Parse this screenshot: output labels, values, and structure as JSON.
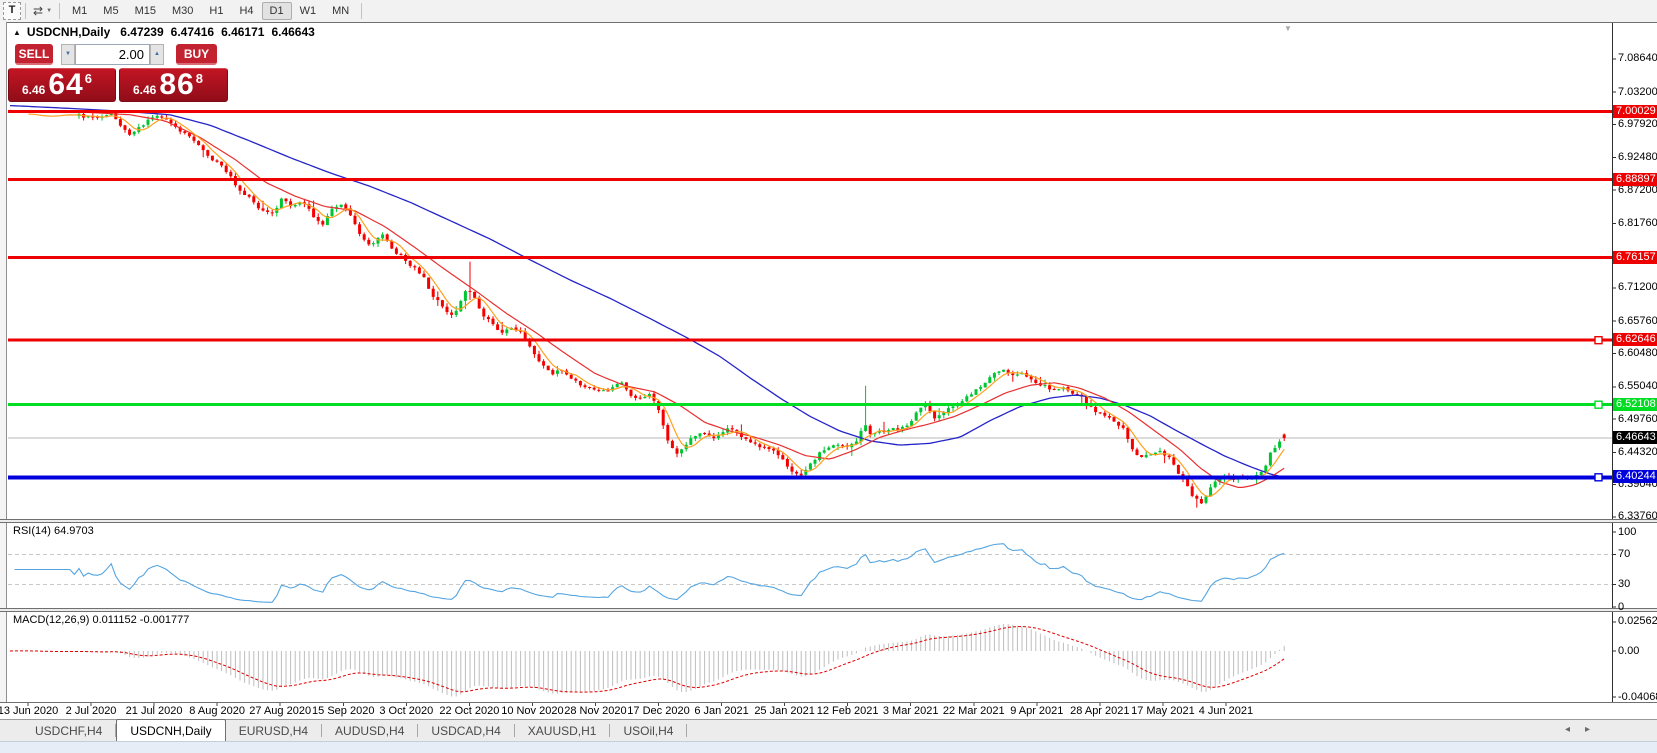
{
  "toolbar": {
    "icons": {
      "text_tool": "T",
      "crosshair_tool": "⇄",
      "dropdown": "▼",
      "title_marker": "▲",
      "shift_marker": "▼",
      "spinner_up": "▲",
      "spinner_down": "▼",
      "nav_left": "◂",
      "nav_right": "▸"
    },
    "timeframes": [
      "M1",
      "M5",
      "M15",
      "M30",
      "H1",
      "H4",
      "D1",
      "W1",
      "MN"
    ],
    "active_timeframe": "D1"
  },
  "chart_window": {
    "title": {
      "symbol": "USDCNH,Daily",
      "open": "6.47239",
      "high": "6.47416",
      "low": "6.46171",
      "close": "6.46643"
    },
    "trade_panel": {
      "sell_label": "SELL",
      "buy_label": "BUY",
      "volume": "2.00",
      "sell_price": {
        "prefix": "6.46",
        "big": "64",
        "sup": "6"
      },
      "buy_price": {
        "prefix": "6.46",
        "big": "86",
        "sup": "8"
      }
    }
  },
  "chart_data": {
    "type": "candlestick",
    "symbol": "USDCNH",
    "timeframe": "Daily",
    "ohlc": {
      "open": 6.47239,
      "high": 6.47416,
      "low": 6.46171,
      "close": 6.46643
    },
    "ylim": [
      6.3343,
      7.109
    ],
    "price_axis_ticks": [
      "7.08640",
      "7.03200",
      "6.97920",
      "6.92480",
      "6.87200",
      "6.81760",
      "6.71200",
      "6.65760",
      "6.60480",
      "6.55040",
      "6.49760",
      "6.44320",
      "6.39040",
      "6.33760"
    ],
    "hlines": [
      {
        "price": 7.00029,
        "label": "7.00029",
        "color": "#ee0000",
        "text_color": "#ffffff",
        "width": 3,
        "handle": false
      },
      {
        "price": 6.88897,
        "label": "6.88897",
        "color": "#ee0000",
        "text_color": "#ffffff",
        "width": 3,
        "handle": false
      },
      {
        "price": 6.76157,
        "label": "6.76157",
        "color": "#ee0000",
        "text_color": "#ffffff",
        "width": 3,
        "handle": false
      },
      {
        "price": 6.62646,
        "label": "6.62646",
        "color": "#ee0000",
        "text_color": "#ffffff",
        "width": 3,
        "handle": true
      },
      {
        "price": 6.52108,
        "label": "6.52108",
        "color": "#00dd22",
        "text_color": "#ffffff",
        "width": 3,
        "handle": true
      },
      {
        "price": 6.40244,
        "label": "6.40244",
        "color": "#0000dd",
        "text_color": "#ffffff",
        "width": 4,
        "handle": true
      }
    ],
    "current_price": {
      "value": 6.46643,
      "label": "6.46643",
      "line_color": "#b9b9b9",
      "badge_bg": "#000000",
      "badge_text": "#ffffff"
    },
    "candle_colors": {
      "up": "#00c432",
      "down": "#f40000"
    },
    "ma_colors": {
      "fast": "#ffa01e",
      "medium": "#e83030",
      "slow": "#2424c8"
    },
    "price_path": [
      [
        10,
        6.998
      ],
      [
        40,
        6.992
      ],
      [
        60,
        6.996
      ],
      [
        75,
        6.995
      ],
      [
        95,
        6.99
      ],
      [
        112,
        6.998
      ],
      [
        128,
        6.962
      ],
      [
        140,
        6.975
      ],
      [
        152,
        6.992
      ],
      [
        168,
        6.988
      ],
      [
        180,
        6.968
      ],
      [
        195,
        6.952
      ],
      [
        210,
        6.925
      ],
      [
        225,
        6.905
      ],
      [
        240,
        6.872
      ],
      [
        252,
        6.855
      ],
      [
        262,
        6.838
      ],
      [
        272,
        6.832
      ],
      [
        282,
        6.858
      ],
      [
        292,
        6.842
      ],
      [
        302,
        6.855
      ],
      [
        312,
        6.832
      ],
      [
        322,
        6.815
      ],
      [
        332,
        6.842
      ],
      [
        342,
        6.848
      ],
      [
        352,
        6.825
      ],
      [
        362,
        6.79
      ],
      [
        372,
        6.782
      ],
      [
        382,
        6.8
      ],
      [
        392,
        6.775
      ],
      [
        402,
        6.762
      ],
      [
        412,
        6.747
      ],
      [
        422,
        6.735
      ],
      [
        432,
        6.7
      ],
      [
        442,
        6.685
      ],
      [
        450,
        6.665
      ],
      [
        458,
        6.68
      ],
      [
        466,
        6.71
      ],
      [
        474,
        6.7
      ],
      [
        482,
        6.665
      ],
      [
        492,
        6.655
      ],
      [
        502,
        6.638
      ],
      [
        512,
        6.648
      ],
      [
        522,
        6.64
      ],
      [
        532,
        6.607
      ],
      [
        542,
        6.585
      ],
      [
        552,
        6.572
      ],
      [
        562,
        6.578
      ],
      [
        572,
        6.562
      ],
      [
        582,
        6.552
      ],
      [
        592,
        6.55
      ],
      [
        602,
        6.542
      ],
      [
        612,
        6.548
      ],
      [
        622,
        6.558
      ],
      [
        632,
        6.535
      ],
      [
        642,
        6.532
      ],
      [
        652,
        6.538
      ],
      [
        660,
        6.505
      ],
      [
        668,
        6.462
      ],
      [
        676,
        6.44
      ],
      [
        684,
        6.452
      ],
      [
        692,
        6.47
      ],
      [
        702,
        6.476
      ],
      [
        712,
        6.465
      ],
      [
        722,
        6.478
      ],
      [
        732,
        6.482
      ],
      [
        742,
        6.47
      ],
      [
        752,
        6.458
      ],
      [
        762,
        6.452
      ],
      [
        772,
        6.448
      ],
      [
        782,
        6.432
      ],
      [
        792,
        6.412
      ],
      [
        800,
        6.403
      ],
      [
        810,
        6.422
      ],
      [
        820,
        6.442
      ],
      [
        830,
        6.452
      ],
      [
        840,
        6.455
      ],
      [
        850,
        6.452
      ],
      [
        858,
        6.465
      ],
      [
        864,
        6.495
      ],
      [
        870,
        6.472
      ],
      [
        880,
        6.478
      ],
      [
        890,
        6.48
      ],
      [
        900,
        6.482
      ],
      [
        910,
        6.49
      ],
      [
        918,
        6.515
      ],
      [
        926,
        6.52
      ],
      [
        934,
        6.5
      ],
      [
        944,
        6.508
      ],
      [
        954,
        6.52
      ],
      [
        964,
        6.53
      ],
      [
        974,
        6.542
      ],
      [
        984,
        6.555
      ],
      [
        994,
        6.572
      ],
      [
        1004,
        6.578
      ],
      [
        1014,
        6.568
      ],
      [
        1024,
        6.572
      ],
      [
        1034,
        6.56
      ],
      [
        1044,
        6.552
      ],
      [
        1054,
        6.545
      ],
      [
        1064,
        6.548
      ],
      [
        1074,
        6.54
      ],
      [
        1084,
        6.53
      ],
      [
        1094,
        6.512
      ],
      [
        1104,
        6.505
      ],
      [
        1114,
        6.495
      ],
      [
        1124,
        6.48
      ],
      [
        1132,
        6.448
      ],
      [
        1140,
        6.435
      ],
      [
        1150,
        6.44
      ],
      [
        1160,
        6.445
      ],
      [
        1170,
        6.432
      ],
      [
        1178,
        6.41
      ],
      [
        1186,
        6.39
      ],
      [
        1194,
        6.368
      ],
      [
        1202,
        6.36
      ],
      [
        1210,
        6.385
      ],
      [
        1218,
        6.4
      ],
      [
        1226,
        6.405
      ],
      [
        1234,
        6.398
      ],
      [
        1242,
        6.4
      ],
      [
        1250,
        6.403
      ],
      [
        1258,
        6.405
      ],
      [
        1264,
        6.412
      ],
      [
        1270,
        6.442
      ],
      [
        1276,
        6.455
      ],
      [
        1281,
        6.462
      ],
      [
        1285,
        6.466
      ]
    ],
    "wick_spikes": [
      {
        "x": 470,
        "price": 6.755,
        "side": "high"
      },
      {
        "x": 864,
        "price": 6.552,
        "side": "high"
      },
      {
        "x": 1197,
        "price": 6.353,
        "side": "low"
      }
    ],
    "ma_medium_path": [
      [
        10,
        7.002
      ],
      [
        75,
        7.0
      ],
      [
        130,
        6.995
      ],
      [
        165,
        6.985
      ],
      [
        200,
        6.958
      ],
      [
        235,
        6.922
      ],
      [
        265,
        6.885
      ],
      [
        295,
        6.862
      ],
      [
        325,
        6.845
      ],
      [
        355,
        6.838
      ],
      [
        385,
        6.812
      ],
      [
        415,
        6.778
      ],
      [
        445,
        6.742
      ],
      [
        475,
        6.708
      ],
      [
        505,
        6.672
      ],
      [
        535,
        6.64
      ],
      [
        565,
        6.605
      ],
      [
        595,
        6.572
      ],
      [
        625,
        6.552
      ],
      [
        655,
        6.542
      ],
      [
        680,
        6.52
      ],
      [
        705,
        6.492
      ],
      [
        730,
        6.478
      ],
      [
        755,
        6.468
      ],
      [
        780,
        6.455
      ],
      [
        805,
        6.438
      ],
      [
        830,
        6.432
      ],
      [
        855,
        6.447
      ],
      [
        880,
        6.468
      ],
      [
        905,
        6.48
      ],
      [
        930,
        6.49
      ],
      [
        955,
        6.502
      ],
      [
        980,
        6.52
      ],
      [
        1005,
        6.54
      ],
      [
        1030,
        6.553
      ],
      [
        1055,
        6.557
      ],
      [
        1080,
        6.548
      ],
      [
        1105,
        6.532
      ],
      [
        1130,
        6.508
      ],
      [
        1155,
        6.478
      ],
      [
        1180,
        6.448
      ],
      [
        1200,
        6.418
      ],
      [
        1220,
        6.395
      ],
      [
        1240,
        6.385
      ],
      [
        1255,
        6.39
      ],
      [
        1270,
        6.402
      ],
      [
        1285,
        6.418
      ]
    ],
    "ma_slow_path": [
      [
        10,
        7.01
      ],
      [
        75,
        7.005
      ],
      [
        130,
        7.0
      ],
      [
        170,
        6.995
      ],
      [
        210,
        6.978
      ],
      [
        250,
        6.952
      ],
      [
        290,
        6.925
      ],
      [
        330,
        6.9
      ],
      [
        370,
        6.878
      ],
      [
        410,
        6.852
      ],
      [
        450,
        6.822
      ],
      [
        490,
        6.792
      ],
      [
        530,
        6.758
      ],
      [
        570,
        6.725
      ],
      [
        610,
        6.695
      ],
      [
        650,
        6.662
      ],
      [
        690,
        6.628
      ],
      [
        720,
        6.6
      ],
      [
        750,
        6.565
      ],
      [
        780,
        6.532
      ],
      [
        810,
        6.502
      ],
      [
        840,
        6.478
      ],
      [
        870,
        6.462
      ],
      [
        900,
        6.455
      ],
      [
        930,
        6.458
      ],
      [
        960,
        6.468
      ],
      [
        990,
        6.495
      ],
      [
        1020,
        6.518
      ],
      [
        1050,
        6.532
      ],
      [
        1075,
        6.537
      ],
      [
        1100,
        6.532
      ],
      [
        1125,
        6.52
      ],
      [
        1150,
        6.503
      ],
      [
        1175,
        6.48
      ],
      [
        1200,
        6.458
      ],
      [
        1225,
        6.437
      ],
      [
        1250,
        6.42
      ],
      [
        1270,
        6.408
      ],
      [
        1285,
        6.402
      ]
    ],
    "date_labels": [
      "13 Jun 2020",
      "2 Jul 2020",
      "21 Jul 2020",
      "8 Aug 2020",
      "27 Aug 2020",
      "15 Sep 2020",
      "3 Oct 2020",
      "22 Oct 2020",
      "10 Nov 2020",
      "28 Nov 2020",
      "17 Dec 2020",
      "6 Jan 2021",
      "25 Jan 2021",
      "12 Feb 2021",
      "3 Mar 2021",
      "22 Mar 2021",
      "9 Apr 2021",
      "28 Apr 2021",
      "17 May 2021",
      "4 Jun 2021"
    ],
    "rsi": {
      "label": "RSI(14)",
      "value": "64.9703",
      "line_color": "#55a5e0",
      "levels": [
        70,
        30
      ],
      "axis_ticks": [
        "100",
        "70",
        "30",
        "0"
      ]
    },
    "macd": {
      "label": "MACD(12,26,9)",
      "value": "0.011152",
      "signal": "-0.001777",
      "axis_ticks": [
        "0.025623",
        "0.00",
        "-0.040687"
      ],
      "bar_color": "#bdbdbd",
      "signal_color": "#e00000"
    }
  },
  "tabs": {
    "items": [
      "USDCHF,H4",
      "USDCNH,Daily",
      "EURUSD,H4",
      "AUDUSD,H4",
      "USDCAD,H4",
      "XAUUSD,H1",
      "USOil,H4"
    ],
    "active_index": 1
  }
}
